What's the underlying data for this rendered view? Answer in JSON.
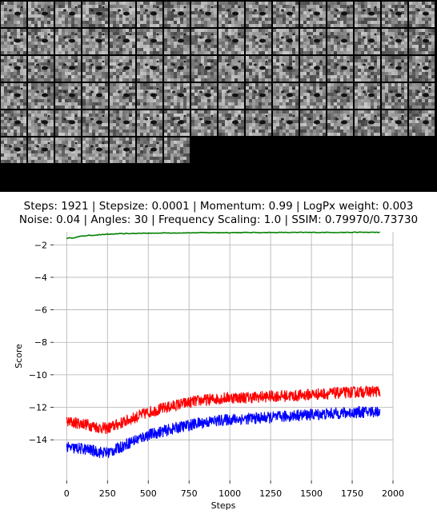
{
  "mosaic": {
    "tile_count": 87,
    "background_color": "#000000"
  },
  "title_lines": [
    "Steps: 1921 | Stepsize: 0.0001 | Momentum: 0.99 | LogPx weight: 0.003",
    "Noise: 0.04 | Angles: 30 | Frequency Scaling: 1.0 | SSIM: 0.79970/0.73730"
  ],
  "chart_data": {
    "type": "line",
    "title": "Steps: 1921 | Stepsize: 0.0001 | Momentum: 0.99 | LogPx weight: 0.003 / Noise: 0.04 | Angles: 30 | Frequency Scaling: 1.0 | SSIM: 0.79970/0.73730",
    "xlabel": "Steps",
    "ylabel": "Score",
    "xlim": [
      -80,
      2000
    ],
    "ylim": [
      -16.5,
      -1.2
    ],
    "xticks": [
      0,
      250,
      500,
      750,
      1000,
      1250,
      1500,
      1750,
      2000
    ],
    "yticks": [
      -2,
      -4,
      -6,
      -8,
      -10,
      -12,
      -14
    ],
    "grid": true,
    "legend": "none",
    "series": [
      {
        "color": "#008000",
        "noise": 0.02,
        "points": [
          [
            0,
            -1.6
          ],
          [
            50,
            -1.55
          ],
          [
            100,
            -1.45
          ],
          [
            200,
            -1.38
          ],
          [
            300,
            -1.33
          ],
          [
            400,
            -1.3
          ],
          [
            600,
            -1.27
          ],
          [
            900,
            -1.25
          ],
          [
            1300,
            -1.24
          ],
          [
            1921,
            -1.23
          ]
        ]
      },
      {
        "color": "#ff0000",
        "noise": 0.35,
        "points": [
          [
            0,
            -12.9
          ],
          [
            100,
            -13.0
          ],
          [
            200,
            -13.25
          ],
          [
            250,
            -13.3
          ],
          [
            300,
            -13.1
          ],
          [
            400,
            -12.7
          ],
          [
            500,
            -12.3
          ],
          [
            600,
            -12.05
          ],
          [
            700,
            -11.8
          ],
          [
            800,
            -11.6
          ],
          [
            900,
            -11.5
          ],
          [
            1000,
            -11.4
          ],
          [
            1100,
            -11.4
          ],
          [
            1200,
            -11.35
          ],
          [
            1300,
            -11.3
          ],
          [
            1400,
            -11.3
          ],
          [
            1500,
            -11.2
          ],
          [
            1600,
            -11.15
          ],
          [
            1700,
            -11.1
          ],
          [
            1800,
            -11.05
          ],
          [
            1921,
            -11.0
          ]
        ]
      },
      {
        "color": "#0000ff",
        "noise": 0.35,
        "points": [
          [
            0,
            -14.5
          ],
          [
            100,
            -14.55
          ],
          [
            200,
            -14.75
          ],
          [
            250,
            -14.8
          ],
          [
            300,
            -14.6
          ],
          [
            400,
            -14.1
          ],
          [
            500,
            -13.7
          ],
          [
            600,
            -13.45
          ],
          [
            700,
            -13.2
          ],
          [
            800,
            -13.0
          ],
          [
            900,
            -12.85
          ],
          [
            1000,
            -12.75
          ],
          [
            1100,
            -12.7
          ],
          [
            1200,
            -12.65
          ],
          [
            1300,
            -12.6
          ],
          [
            1400,
            -12.5
          ],
          [
            1500,
            -12.45
          ],
          [
            1600,
            -12.4
          ],
          [
            1700,
            -12.35
          ],
          [
            1800,
            -12.3
          ],
          [
            1921,
            -12.25
          ]
        ]
      }
    ]
  }
}
